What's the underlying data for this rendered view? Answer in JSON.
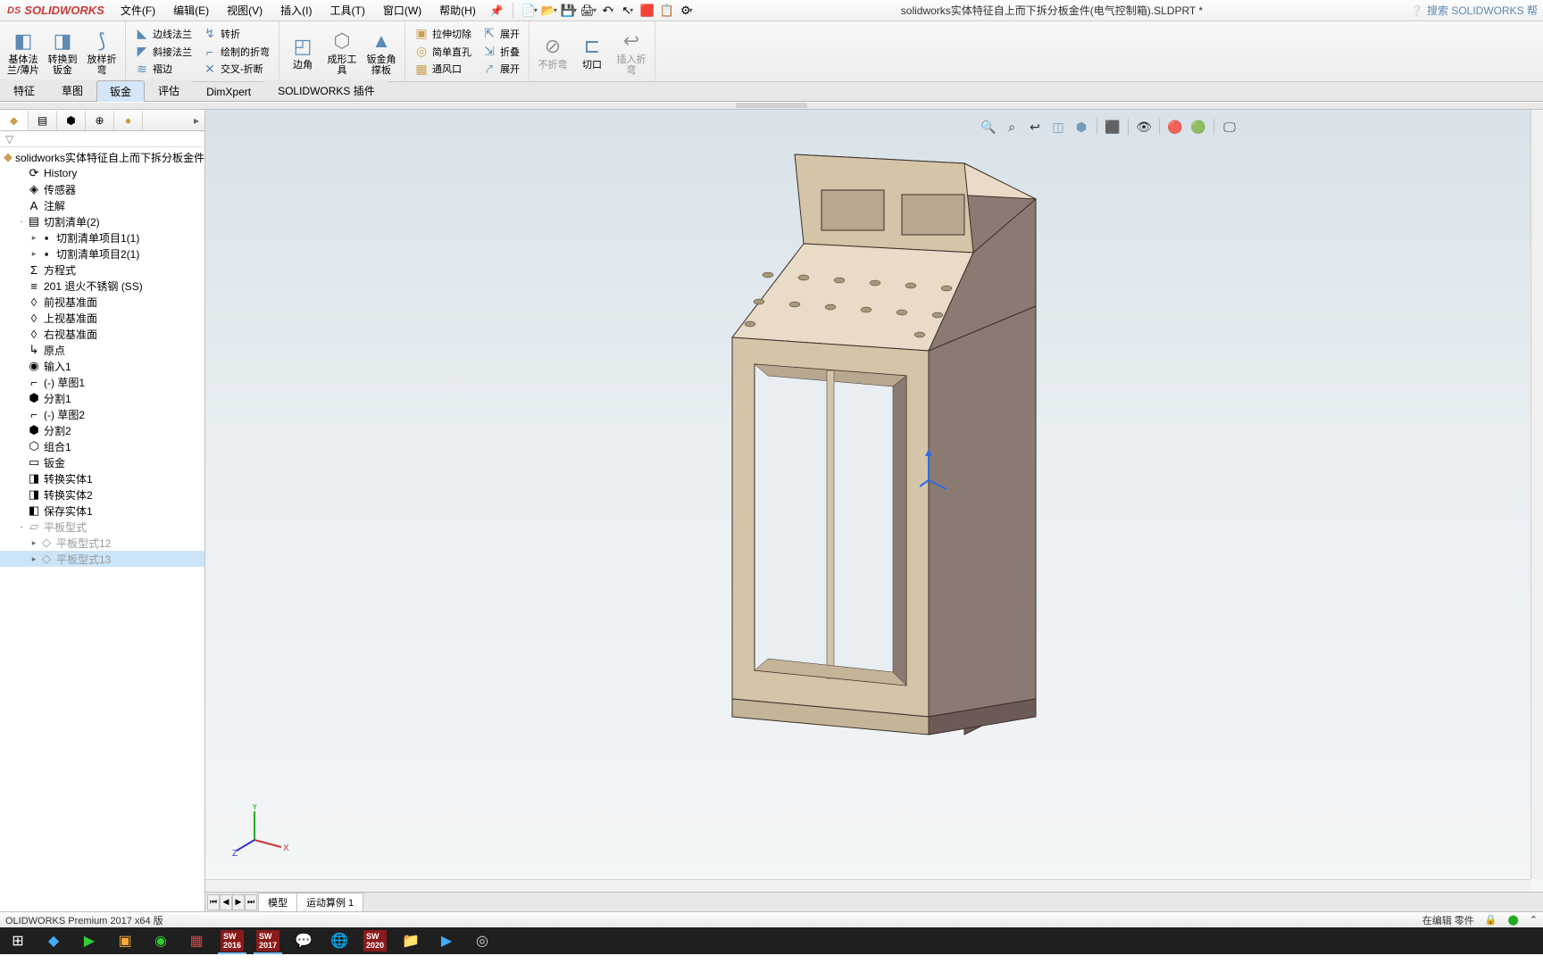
{
  "logo": {
    "ds": "DS",
    "brand": "SOLIDWORKS"
  },
  "menu": [
    "文件(F)",
    "编辑(E)",
    "视图(V)",
    "插入(I)",
    "工具(T)",
    "窗口(W)",
    "帮助(H)"
  ],
  "doc_title": "solidworks实体特征自上而下拆分板金件(电气控制箱).SLDPRT *",
  "search_placeholder": "搜索 SOLIDWORKS 帮",
  "ribbon": {
    "g1": [
      {
        "label": "基体法兰/薄片",
        "icon": "◧"
      },
      {
        "label": "转换到钣金",
        "icon": "◨"
      },
      {
        "label": "放样折弯",
        "icon": "⟆"
      }
    ],
    "g2_small": [
      {
        "label": "边线法兰",
        "icon": "◣"
      },
      {
        "label": "斜接法兰",
        "icon": "◤"
      },
      {
        "label": "褶边",
        "icon": "≋"
      }
    ],
    "g2_small2": [
      {
        "label": "转折",
        "icon": "↯"
      },
      {
        "label": "绘制的折弯",
        "icon": "⌐"
      },
      {
        "label": "交叉-折断",
        "icon": "✕"
      }
    ],
    "g3": [
      {
        "label": "边角",
        "icon": "◰"
      },
      {
        "label": "成形工具",
        "icon": "⬡"
      },
      {
        "label": "钣金角撑板",
        "icon": "▲"
      }
    ],
    "g4_small": [
      {
        "label": "拉伸切除",
        "icon": "▣"
      },
      {
        "label": "简单直孔",
        "icon": "◎"
      },
      {
        "label": "通风口",
        "icon": "▦"
      }
    ],
    "g4_small2": [
      {
        "label": "展开",
        "icon": "⇱"
      },
      {
        "label": "折叠",
        "icon": "⇲"
      },
      {
        "label": "展开",
        "icon": "⤤"
      }
    ],
    "g5": [
      {
        "label": "不折弯",
        "icon": "⊘",
        "disabled": true
      },
      {
        "label": "切口",
        "icon": "⊏"
      },
      {
        "label": "插入折弯",
        "icon": "↩",
        "disabled": true
      }
    ]
  },
  "tabs": [
    "特征",
    "草图",
    "钣金",
    "评估",
    "DimXpert",
    "SOLIDWORKS 插件"
  ],
  "active_tab": "钣金",
  "tree": {
    "root": "solidworks实体特征自上而下拆分板金件",
    "items": [
      {
        "label": "History",
        "icon": "⟳",
        "indent": 1
      },
      {
        "label": "传感器",
        "icon": "◈",
        "indent": 1
      },
      {
        "label": "注解",
        "icon": "A",
        "indent": 1
      },
      {
        "label": "切割清单(2)",
        "icon": "▤",
        "indent": 1,
        "toggle": "-"
      },
      {
        "label": "切割清单项目1(1)",
        "icon": "▪",
        "indent": 2,
        "toggle": "▸"
      },
      {
        "label": "切割清单项目2(1)",
        "icon": "▪",
        "indent": 2,
        "toggle": "▸"
      },
      {
        "label": "方程式",
        "icon": "Σ",
        "indent": 1
      },
      {
        "label": "201 退火不锈钢 (SS)",
        "icon": "≡",
        "indent": 1
      },
      {
        "label": "前视基准面",
        "icon": "◊",
        "indent": 1
      },
      {
        "label": "上视基准面",
        "icon": "◊",
        "indent": 1
      },
      {
        "label": "右视基准面",
        "icon": "◊",
        "indent": 1
      },
      {
        "label": "原点",
        "icon": "↳",
        "indent": 1
      },
      {
        "label": "输入1",
        "icon": "◉",
        "indent": 1
      },
      {
        "label": "(-) 草图1",
        "icon": "⌐",
        "indent": 1
      },
      {
        "label": "分割1",
        "icon": "⬢",
        "indent": 1
      },
      {
        "label": "(-) 草图2",
        "icon": "⌐",
        "indent": 1
      },
      {
        "label": "分割2",
        "icon": "⬢",
        "indent": 1
      },
      {
        "label": "组合1",
        "icon": "⬡",
        "indent": 1
      },
      {
        "label": "钣金",
        "icon": "▭",
        "indent": 1
      },
      {
        "label": "转换实体1",
        "icon": "◨",
        "indent": 1
      },
      {
        "label": "转换实体2",
        "icon": "◨",
        "indent": 1
      },
      {
        "label": "保存实体1",
        "icon": "◧",
        "indent": 1
      },
      {
        "label": "平板型式",
        "icon": "▱",
        "indent": 1,
        "dim": true,
        "toggle": "-"
      },
      {
        "label": "平板型式12",
        "icon": "◇",
        "indent": 2,
        "dim": true,
        "toggle": "▸"
      },
      {
        "label": "平板型式13",
        "icon": "◇",
        "indent": 2,
        "dim": true,
        "toggle": "▸",
        "selected": true
      }
    ]
  },
  "viewport_tabs": [
    "模型",
    "运动算例 1"
  ],
  "status_left": "OLIDWORKS Premium 2017 x64 版",
  "status_right": "在编辑 零件",
  "model_colors": {
    "face_light": "#e8dcc8",
    "face_mid": "#d4c4a8",
    "face_dark": "#8a7a72",
    "face_darker": "#6b5a56",
    "edge": "#3a3028"
  }
}
